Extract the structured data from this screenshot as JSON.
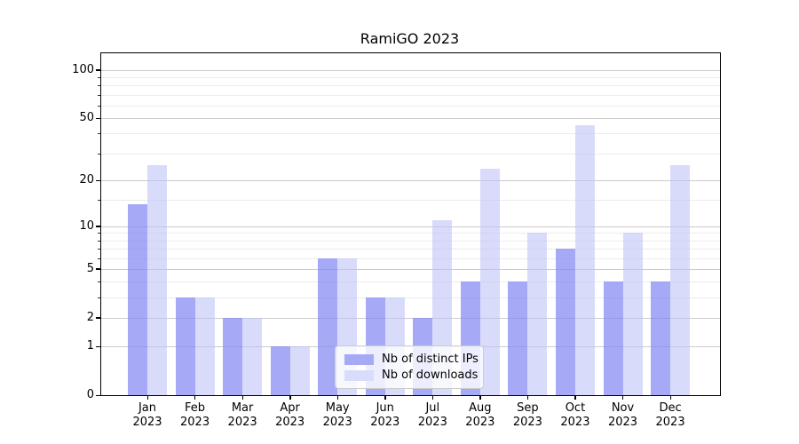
{
  "figure": {
    "title": "RamiGO 2023"
  },
  "chart_data": {
    "type": "bar",
    "title": "RamiGO 2023",
    "categories": [
      "Jan 2023",
      "Feb 2023",
      "Mar 2023",
      "Apr 2023",
      "May 2023",
      "Jun 2023",
      "Jul 2023",
      "Aug 2023",
      "Sep 2023",
      "Oct 2023",
      "Nov 2023",
      "Dec 2023"
    ],
    "series": [
      {
        "name": "Nb of distinct IPs",
        "legend_color": "#a6a9f4",
        "fill": "rgba(131,136,241,0.72)",
        "values": [
          14,
          3,
          2,
          1,
          6,
          3,
          2,
          4,
          4,
          7,
          4,
          4
        ]
      },
      {
        "name": "Nb of downloads",
        "legend_color": "#d9dcfa",
        "fill": "rgba(186,192,246,0.56)",
        "values": [
          25,
          3,
          2,
          1,
          6,
          3,
          11,
          24,
          9,
          45,
          9,
          25
        ]
      }
    ],
    "yscale": "log1p",
    "ylim": [
      0,
      127
    ],
    "y_major_ticks": [
      0,
      1,
      2,
      5,
      10,
      20,
      50,
      100
    ],
    "y_minor_ticks": [
      3,
      4,
      6,
      7,
      8,
      9,
      15,
      30,
      40,
      60,
      70,
      80,
      90
    ],
    "grid": true,
    "legend_position": "lower-center-inside",
    "colors": {
      "grid_major": "#cccccc",
      "grid_minor": "#ececec",
      "axis": "#000000"
    }
  }
}
